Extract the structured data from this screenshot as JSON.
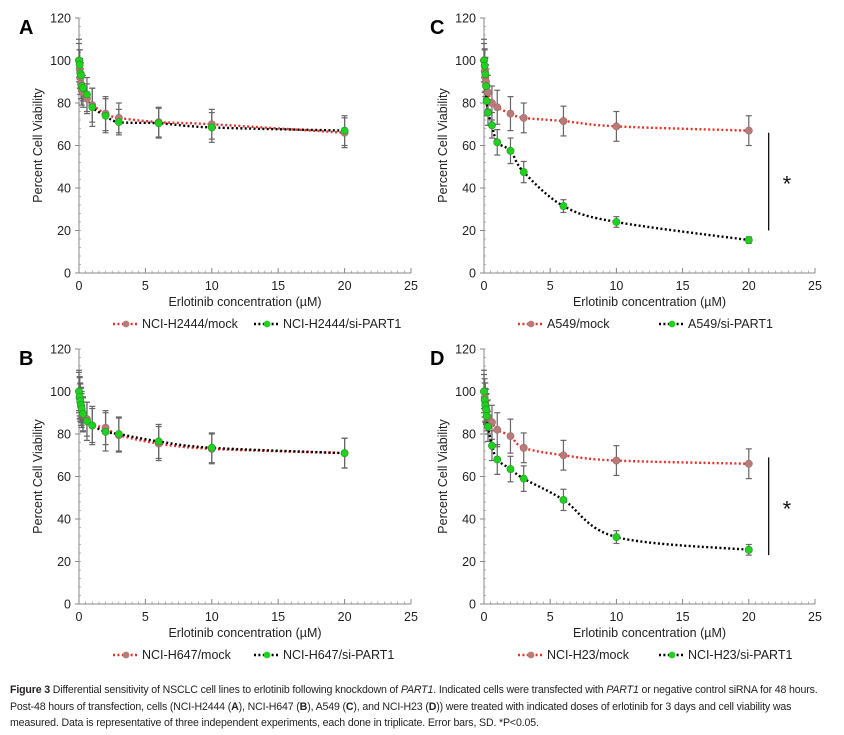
{
  "figure": {
    "caption": {
      "label": "Figure 3",
      "text_1": " Differential sensitivity of NSCLC cell lines to erlotinib following knockdown of ",
      "gene_1": "PART1",
      "text_2": ". Indicated cells were transfected with ",
      "gene_2": "PART1",
      "text_3": " or negative control siRNA for 48 hours. Post-48 hours of transfection, cells (NCI-H2444 (",
      "ref_a": "A",
      "text_4": "), NCI-H647 (",
      "ref_b": "B",
      "text_5": "), A549 (",
      "ref_c": "C",
      "text_6": "), and NCI-H23 (",
      "ref_d": "D",
      "text_7": ")) were treated with indicated doses of erlotinib for 3 days and cell viability was measured. Data is representative of three independent experiments, each done in triplicate. Error bars, SD. *P<0.05."
    },
    "colors": {
      "mock_line": "#e8312a",
      "mock_marker": "#b97a7a",
      "sipart_line": "#000000",
      "sipart_marker": "#22d022",
      "error_bar": "#666666",
      "axis": "#888888"
    }
  },
  "chart_data": [
    {
      "panel": "A",
      "type": "line",
      "xlabel": "Erlotinib concentration (µM)",
      "ylabel": "Percent Cell Viability",
      "xlim": [
        0,
        25
      ],
      "ylim": [
        0,
        120
      ],
      "xticks": [
        "0",
        "5",
        "10",
        "15",
        "20",
        "25"
      ],
      "yticks": [
        "0",
        "20",
        "40",
        "60",
        "80",
        "100",
        "120"
      ],
      "grid": false,
      "legend_position": "bottom",
      "significance": null,
      "x": [
        0,
        0.05,
        0.1,
        0.15,
        0.2,
        0.3,
        0.6,
        1,
        2,
        3,
        6,
        10,
        20
      ],
      "series": [
        {
          "name": "NCI-H2444/mock",
          "values": [
            100,
            96,
            92,
            89,
            86,
            85,
            82,
            79,
            75,
            73,
            71,
            70,
            66
          ],
          "sd": [
            10,
            9,
            8,
            7,
            7,
            7,
            7,
            8,
            8,
            7,
            7,
            7,
            7
          ]
        },
        {
          "name": "NCI-H2444/si-PART1",
          "values": [
            100,
            98,
            94,
            93,
            88,
            87,
            84,
            78,
            74,
            71,
            70.5,
            68.5,
            67
          ],
          "sd": [
            8,
            7,
            7,
            6,
            6,
            6,
            8,
            9,
            8,
            6,
            7,
            7,
            7
          ]
        }
      ]
    },
    {
      "panel": "C",
      "type": "line",
      "xlabel": "Erlotinib concentration (µM)",
      "ylabel": "Percent Cell Viability",
      "xlim": [
        0,
        25
      ],
      "ylim": [
        0,
        120
      ],
      "xticks": [
        "0",
        "5",
        "10",
        "15",
        "20",
        "25"
      ],
      "yticks": [
        "0",
        "20",
        "40",
        "60",
        "80",
        "100",
        "120"
      ],
      "grid": false,
      "legend_position": "bottom",
      "significance": {
        "label": "*",
        "x": 21.5,
        "y_range": [
          20,
          66
        ]
      },
      "x": [
        0,
        0.05,
        0.1,
        0.15,
        0.2,
        0.3,
        0.6,
        1,
        2,
        3,
        6,
        10,
        20
      ],
      "series": [
        {
          "name": "A549/mock",
          "values": [
            100,
            95,
            92,
            90,
            88,
            85,
            80,
            78,
            75,
            73,
            71.5,
            69,
            67
          ],
          "sd": [
            10,
            10,
            9,
            8,
            8,
            8,
            8,
            8,
            8,
            7,
            7,
            7,
            7
          ]
        },
        {
          "name": "A549/si-PART1",
          "values": [
            100,
            97.5,
            93.5,
            88,
            81,
            75.5,
            69.5,
            61.5,
            57.5,
            47.5,
            31.5,
            24,
            15.5
          ],
          "sd": [
            8,
            8,
            8,
            7,
            7,
            6,
            6,
            6,
            6,
            5,
            3,
            2.5,
            1.5
          ]
        }
      ]
    },
    {
      "panel": "B",
      "type": "line",
      "xlabel": "Erlotinib concentration (µM)",
      "ylabel": "Percent Cell Viability",
      "xlim": [
        0,
        25
      ],
      "ylim": [
        0,
        120
      ],
      "xticks": [
        "0",
        "5",
        "10",
        "15",
        "20",
        "25"
      ],
      "yticks": [
        "0",
        "20",
        "40",
        "60",
        "80",
        "100",
        "120"
      ],
      "grid": false,
      "legend_position": "bottom",
      "significance": null,
      "x": [
        0,
        0.05,
        0.1,
        0.15,
        0.2,
        0.3,
        0.6,
        1,
        2,
        3,
        6,
        10,
        20
      ],
      "series": [
        {
          "name": "NCI-H647/mock",
          "values": [
            100,
            97,
            95,
            93,
            91,
            89,
            87,
            84,
            83,
            79.5,
            75.5,
            73,
            71
          ],
          "sd": [
            10,
            10,
            9,
            9,
            8,
            8,
            8,
            8,
            8,
            8,
            8,
            7,
            7
          ]
        },
        {
          "name": "NCI-H647/si-PART1",
          "values": [
            100,
            97.5,
            95.5,
            93.5,
            92,
            89.5,
            86,
            84,
            81,
            80,
            76.5,
            73.5,
            71
          ],
          "sd": [
            9,
            9,
            8,
            8,
            8,
            8,
            9,
            9,
            9,
            8,
            8,
            7,
            7
          ]
        }
      ]
    },
    {
      "panel": "D",
      "type": "line",
      "xlabel": "Erlotinib concentration (µM)",
      "ylabel": "Percent Cell Viability",
      "xlim": [
        0,
        25
      ],
      "ylim": [
        0,
        120
      ],
      "xticks": [
        "0",
        "5",
        "10",
        "15",
        "20",
        "25"
      ],
      "yticks": [
        "0",
        "20",
        "40",
        "60",
        "80",
        "100",
        "120"
      ],
      "grid": false,
      "legend_position": "bottom",
      "significance": {
        "label": "*",
        "x": 21.5,
        "y_range": [
          23,
          69
        ]
      },
      "x": [
        0,
        0.05,
        0.1,
        0.15,
        0.2,
        0.3,
        0.6,
        1,
        2,
        3,
        6,
        10,
        20
      ],
      "series": [
        {
          "name": "NCI-H23/mock",
          "values": [
            100,
            97,
            95,
            93,
            91,
            88,
            85.5,
            82,
            79,
            73.5,
            70,
            67.5,
            66
          ],
          "sd": [
            10,
            9,
            9,
            8,
            8,
            8,
            8,
            8,
            8,
            7,
            7,
            7,
            7
          ]
        },
        {
          "name": "NCI-H23/si-PART1",
          "values": [
            100,
            96,
            93.5,
            91.5,
            88.5,
            83.5,
            74.5,
            68,
            63.5,
            59,
            49,
            31.5,
            25.5
          ],
          "sd": [
            8,
            8,
            8,
            7,
            7,
            7,
            7,
            7,
            6,
            6,
            5,
            3,
            2.5
          ]
        }
      ]
    }
  ]
}
